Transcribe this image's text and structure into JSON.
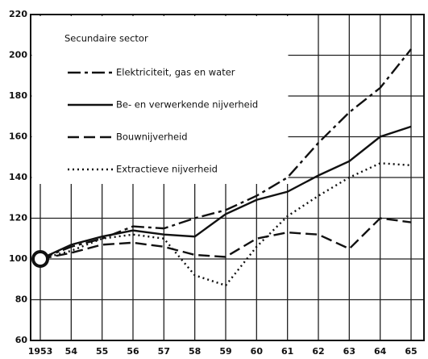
{
  "chart_data": {
    "type": "line",
    "legend_title": "Secundaire sector",
    "categories": [
      "1953",
      "54",
      "55",
      "56",
      "57",
      "58",
      "59",
      "60",
      "61",
      "62",
      "63",
      "64",
      "65"
    ],
    "series": [
      {
        "name": "Elektriciteit, gas en water",
        "color": "#111111",
        "dash": "dashdot",
        "values": [
          100,
          106,
          110,
          116,
          115,
          120,
          124,
          131,
          140,
          157,
          172,
          184,
          203
        ]
      },
      {
        "name": "Be- en verwerkende nijverheid",
        "color": "#111111",
        "dash": "solid",
        "values": [
          100,
          107,
          111,
          114,
          112,
          111,
          122,
          129,
          133,
          141,
          148,
          160,
          165
        ]
      },
      {
        "name": "Bouwnijverheid",
        "color": "#111111",
        "dash": "dashed",
        "values": [
          100,
          103,
          107,
          108,
          106,
          102,
          101,
          110,
          113,
          112,
          105,
          120,
          118
        ]
      },
      {
        "name": "Extractieve nijverheid",
        "color": "#111111",
        "dash": "dotted",
        "values": [
          100,
          104,
          110,
          112,
          110,
          92,
          87,
          106,
          121,
          131,
          140,
          147,
          146
        ]
      }
    ],
    "ylim": [
      60,
      220
    ],
    "yticks": [
      60,
      80,
      100,
      120,
      140,
      160,
      180,
      200,
      220
    ],
    "grid": true
  }
}
